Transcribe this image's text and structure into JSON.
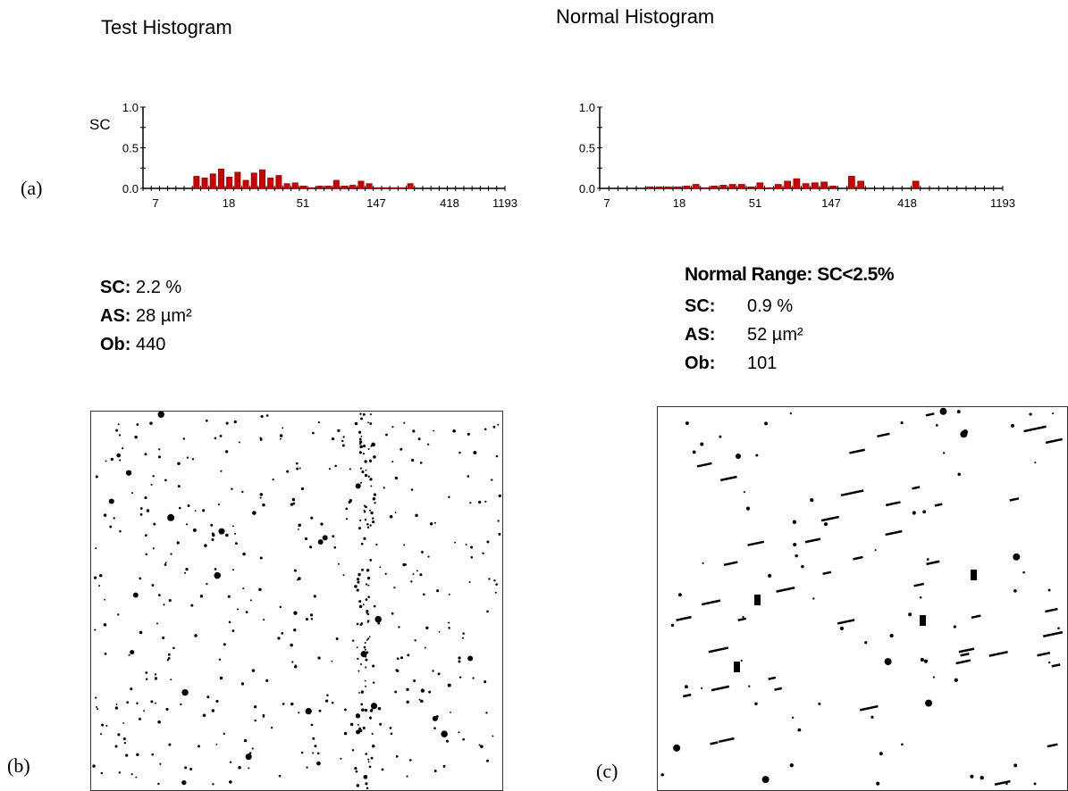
{
  "panel_labels": {
    "a": "(a)",
    "b": "(b)",
    "c": "(c)"
  },
  "test": {
    "title": "Test Histogram",
    "stats": {
      "sc_label": "SC:",
      "sc_value": "2.2 %",
      "as_label": "AS:",
      "as_value": "28 µm²",
      "ob_label": "Ob:",
      "ob_value": "440"
    }
  },
  "normal": {
    "title": "Normal Histogram",
    "range": "Normal Range: SC<2.5%",
    "stats": {
      "sc_label": "SC:",
      "sc_value": "0.9 %",
      "as_label": "AS:",
      "as_value": "52 µm²",
      "ob_label": "Ob:",
      "ob_value": "101"
    }
  },
  "chart_data": [
    {
      "type": "bar",
      "title": "Test Histogram",
      "ylabel": "SC",
      "ylim": [
        0,
        1.0
      ],
      "yticks": [
        "0.0",
        "0.5",
        "1.0"
      ],
      "xticks": [
        "7",
        "18",
        "51",
        "147",
        "418",
        "1193"
      ],
      "bar_color": "#cc0000",
      "values": [
        0,
        0,
        0,
        0,
        0,
        0,
        0.15,
        0.13,
        0.18,
        0.24,
        0.14,
        0.2,
        0.1,
        0.19,
        0.23,
        0.13,
        0.16,
        0.06,
        0.07,
        0.03,
        0.01,
        0.03,
        0.03,
        0.1,
        0.03,
        0.04,
        0.09,
        0.06,
        0.01,
        0.01,
        0.01,
        0.01,
        0.06,
        0,
        0,
        0,
        0,
        0,
        0,
        0,
        0,
        0,
        0,
        0
      ]
    },
    {
      "type": "bar",
      "title": "Normal Histogram",
      "ylim": [
        0,
        1.0
      ],
      "yticks": [
        "0.0",
        "0.5",
        "1.0"
      ],
      "xticks": [
        "7",
        "18",
        "51",
        "147",
        "418",
        "1193"
      ],
      "bar_color": "#cc0000",
      "values": [
        0,
        0,
        0,
        0,
        0,
        0.02,
        0.02,
        0.02,
        0.02,
        0.03,
        0.05,
        0.01,
        0.03,
        0.04,
        0.05,
        0.05,
        0.02,
        0.07,
        0.01,
        0.05,
        0.09,
        0.12,
        0.06,
        0.07,
        0.08,
        0.03,
        0.0,
        0.15,
        0.09,
        0,
        0,
        0,
        0,
        0,
        0.09,
        0,
        0,
        0,
        0,
        0,
        0,
        0,
        0,
        0
      ]
    }
  ]
}
